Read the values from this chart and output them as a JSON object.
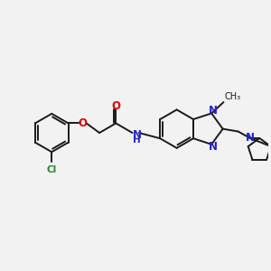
{
  "bg_color": "#f2f2f2",
  "bond_color": "#1a1a1a",
  "bond_width": 1.4,
  "colors": {
    "O": "#dd0000",
    "N": "#2222cc",
    "Cl": "#228822",
    "C": "#1a1a1a"
  },
  "xlim": [
    0,
    10
  ],
  "ylim": [
    0,
    8
  ]
}
